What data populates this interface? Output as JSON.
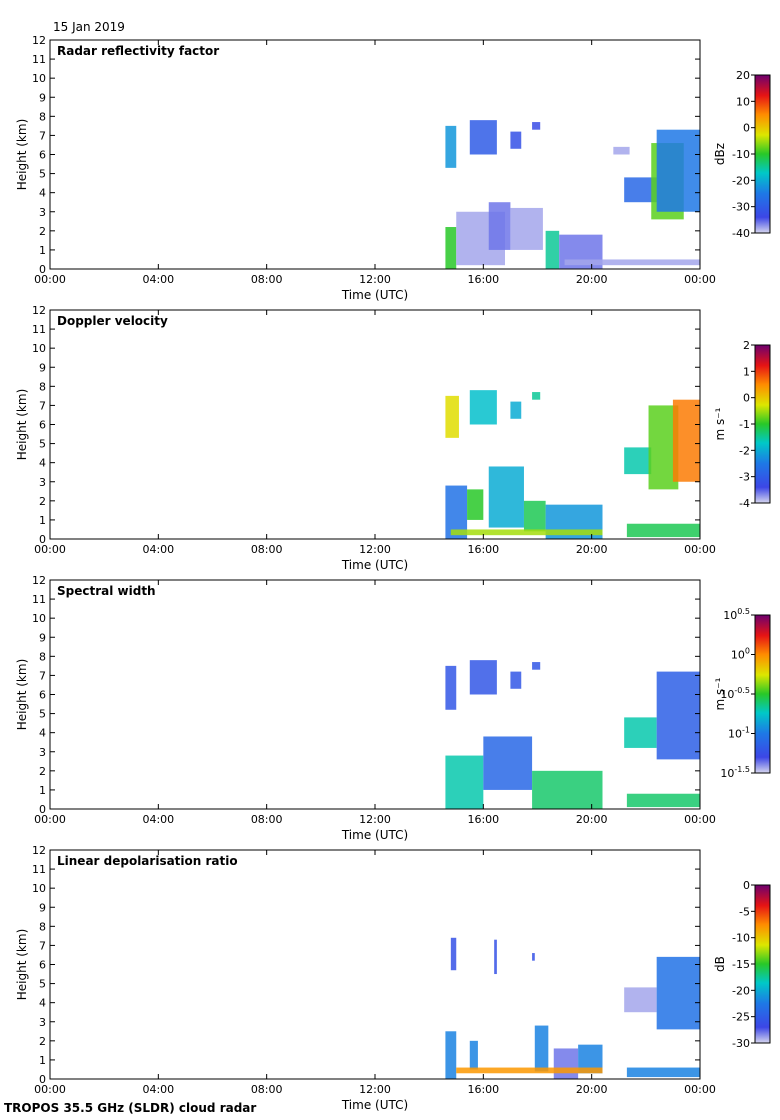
{
  "header": {
    "date": "15 Jan 2019"
  },
  "footer": {
    "instrument": "TROPOS 35.5 GHz (SLDR) cloud radar"
  },
  "chart_data": [
    {
      "type": "heatmap",
      "title": "Radar reflectivity factor",
      "xlabel": "Time (UTC)",
      "ylabel": "Height (km)",
      "xticks": [
        "00:00",
        "04:00",
        "08:00",
        "12:00",
        "16:00",
        "20:00",
        "00:00"
      ],
      "yticks": [
        "0",
        "1",
        "2",
        "3",
        "4",
        "5",
        "6",
        "7",
        "8",
        "9",
        "10",
        "11",
        "12"
      ],
      "ylim": [
        0,
        12
      ],
      "xlim_hours": [
        0,
        24
      ],
      "colorbar": {
        "unit": "dBz",
        "labels": [
          "20",
          "10",
          "0",
          "-10",
          "-20",
          "-30",
          "-40"
        ],
        "range": [
          -40,
          20
        ]
      },
      "echoes": [
        {
          "t0": 14.6,
          "t1": 15.0,
          "h0": 5.3,
          "h1": 7.5,
          "v": -22
        },
        {
          "t0": 15.5,
          "t1": 16.5,
          "h0": 6.0,
          "h1": 7.8,
          "v": -30
        },
        {
          "t0": 17.0,
          "t1": 17.4,
          "h0": 6.3,
          "h1": 7.2,
          "v": -32
        },
        {
          "t0": 17.8,
          "t1": 18.1,
          "h0": 7.3,
          "h1": 7.7,
          "v": -33
        },
        {
          "t0": 14.6,
          "t1": 15.0,
          "h0": 0.0,
          "h1": 2.2,
          "v": -10
        },
        {
          "t0": 15.0,
          "t1": 16.8,
          "h0": 0.2,
          "h1": 3.0,
          "v": -38
        },
        {
          "t0": 16.2,
          "t1": 17.0,
          "h0": 1.0,
          "h1": 3.5,
          "v": -36
        },
        {
          "t0": 17.0,
          "t1": 18.2,
          "h0": 1.0,
          "h1": 3.2,
          "v": -38
        },
        {
          "t0": 18.3,
          "t1": 18.8,
          "h0": 0.0,
          "h1": 2.0,
          "v": -15
        },
        {
          "t0": 18.8,
          "t1": 20.4,
          "h0": 0.0,
          "h1": 1.8,
          "v": -36
        },
        {
          "t0": 19.0,
          "t1": 24.0,
          "h0": 0.2,
          "h1": 0.5,
          "v": -38
        },
        {
          "t0": 21.2,
          "t1": 22.4,
          "h0": 3.5,
          "h1": 4.8,
          "v": -28
        },
        {
          "t0": 22.2,
          "t1": 23.4,
          "h0": 2.6,
          "h1": 6.6,
          "v": -8
        },
        {
          "t0": 22.4,
          "t1": 24.0,
          "h0": 3.0,
          "h1": 7.3,
          "v": -25
        },
        {
          "t0": 20.8,
          "t1": 21.4,
          "h0": 6.0,
          "h1": 6.4,
          "v": -38
        }
      ]
    },
    {
      "type": "heatmap",
      "title": "Doppler velocity",
      "xlabel": "Time (UTC)",
      "ylabel": "Height (km)",
      "xticks": [
        "00:00",
        "04:00",
        "08:00",
        "12:00",
        "16:00",
        "20:00",
        "00:00"
      ],
      "yticks": [
        "0",
        "1",
        "2",
        "3",
        "4",
        "5",
        "6",
        "7",
        "8",
        "9",
        "10",
        "11",
        "12"
      ],
      "ylim": [
        0,
        12
      ],
      "xlim_hours": [
        0,
        24
      ],
      "colorbar": {
        "unit": "m s⁻¹",
        "labels": [
          "2",
          "1",
          "0",
          "-1",
          "-2",
          "-3",
          "-4"
        ],
        "range": [
          -4,
          2
        ]
      },
      "echoes": [
        {
          "t0": 14.6,
          "t1": 15.1,
          "h0": 5.3,
          "h1": 7.5,
          "v": -0.2
        },
        {
          "t0": 15.5,
          "t1": 16.5,
          "h0": 6.0,
          "h1": 7.8,
          "v": -1.8
        },
        {
          "t0": 17.0,
          "t1": 17.4,
          "h0": 6.3,
          "h1": 7.2,
          "v": -2.0
        },
        {
          "t0": 17.8,
          "t1": 18.1,
          "h0": 7.3,
          "h1": 7.7,
          "v": -1.5
        },
        {
          "t0": 14.6,
          "t1": 15.4,
          "h0": 0.0,
          "h1": 2.8,
          "v": -2.6
        },
        {
          "t0": 15.4,
          "t1": 16.0,
          "h0": 1.0,
          "h1": 2.6,
          "v": -1.0
        },
        {
          "t0": 16.2,
          "t1": 17.5,
          "h0": 0.6,
          "h1": 3.8,
          "v": -2.0
        },
        {
          "t0": 17.5,
          "t1": 18.3,
          "h0": 0.4,
          "h1": 2.0,
          "v": -1.2
        },
        {
          "t0": 18.3,
          "t1": 20.4,
          "h0": 0.0,
          "h1": 1.8,
          "v": -2.2
        },
        {
          "t0": 14.8,
          "t1": 20.4,
          "h0": 0.2,
          "h1": 0.5,
          "v": -0.5
        },
        {
          "t0": 21.2,
          "t1": 22.2,
          "h0": 3.4,
          "h1": 4.8,
          "v": -1.6
        },
        {
          "t0": 22.1,
          "t1": 23.2,
          "h0": 2.6,
          "h1": 7.0,
          "v": -0.8
        },
        {
          "t0": 23.0,
          "t1": 24.0,
          "h0": 3.0,
          "h1": 7.3,
          "v": 0.6
        },
        {
          "t0": 21.3,
          "t1": 24.0,
          "h0": 0.1,
          "h1": 0.8,
          "v": -1.2
        }
      ]
    },
    {
      "type": "heatmap",
      "title": "Spectral width",
      "xlabel": "Time (UTC)",
      "ylabel": "Height (km)",
      "xticks": [
        "00:00",
        "04:00",
        "08:00",
        "12:00",
        "16:00",
        "20:00",
        "00:00"
      ],
      "yticks": [
        "0",
        "1",
        "2",
        "3",
        "4",
        "5",
        "6",
        "7",
        "8",
        "9",
        "10",
        "11",
        "12"
      ],
      "ylim": [
        0,
        12
      ],
      "xlim_hours": [
        0,
        24
      ],
      "colorbar": {
        "unit": "m s⁻¹",
        "labels": [
          "10^0.5",
          "10^0",
          "10^-0.5",
          "10^-1",
          "10^-1.5"
        ],
        "range_log10": [
          -1.5,
          0.5
        ]
      },
      "echoes": [
        {
          "t0": 14.6,
          "t1": 15.0,
          "h0": 5.2,
          "h1": 7.5,
          "v": -1.2
        },
        {
          "t0": 15.5,
          "t1": 16.5,
          "h0": 6.0,
          "h1": 7.8,
          "v": -1.2
        },
        {
          "t0": 17.0,
          "t1": 17.4,
          "h0": 6.3,
          "h1": 7.2,
          "v": -1.2
        },
        {
          "t0": 17.8,
          "t1": 18.1,
          "h0": 7.3,
          "h1": 7.7,
          "v": -1.2
        },
        {
          "t0": 14.6,
          "t1": 16.0,
          "h0": 0.0,
          "h1": 2.8,
          "v": -0.7
        },
        {
          "t0": 16.0,
          "t1": 17.8,
          "h0": 1.0,
          "h1": 3.8,
          "v": -1.1
        },
        {
          "t0": 17.8,
          "t1": 20.4,
          "h0": 0.0,
          "h1": 2.0,
          "v": -0.6
        },
        {
          "t0": 21.2,
          "t1": 22.4,
          "h0": 3.2,
          "h1": 4.8,
          "v": -0.7
        },
        {
          "t0": 22.4,
          "t1": 24.0,
          "h0": 2.6,
          "h1": 7.2,
          "v": -1.15
        },
        {
          "t0": 21.3,
          "t1": 24.0,
          "h0": 0.1,
          "h1": 0.8,
          "v": -0.6
        }
      ]
    },
    {
      "type": "heatmap",
      "title": "Linear depolarisation ratio",
      "xlabel": "Time (UTC)",
      "ylabel": "Height (km)",
      "xticks": [
        "00:00",
        "04:00",
        "08:00",
        "12:00",
        "16:00",
        "20:00",
        "00:00"
      ],
      "yticks": [
        "0",
        "1",
        "2",
        "3",
        "4",
        "5",
        "6",
        "7",
        "8",
        "9",
        "10",
        "11",
        "12"
      ],
      "ylim": [
        0,
        12
      ],
      "xlim_hours": [
        0,
        24
      ],
      "colorbar": {
        "unit": "dB",
        "labels": [
          "0",
          "-5",
          "-10",
          "-15",
          "-20",
          "-25",
          "-30"
        ],
        "range": [
          -30,
          0
        ]
      },
      "echoes": [
        {
          "t0": 14.8,
          "t1": 15.0,
          "h0": 5.7,
          "h1": 7.4,
          "v": -26
        },
        {
          "t0": 16.4,
          "t1": 16.5,
          "h0": 5.5,
          "h1": 7.3,
          "v": -26
        },
        {
          "t0": 17.8,
          "t1": 17.9,
          "h0": 6.2,
          "h1": 6.6,
          "v": -26
        },
        {
          "t0": 14.6,
          "t1": 15.0,
          "h0": 0.0,
          "h1": 2.5,
          "v": -22
        },
        {
          "t0": 15.5,
          "t1": 15.8,
          "h0": 0.5,
          "h1": 2.0,
          "v": -22
        },
        {
          "t0": 17.9,
          "t1": 18.4,
          "h0": 0.4,
          "h1": 2.8,
          "v": -22
        },
        {
          "t0": 18.6,
          "t1": 19.5,
          "h0": 0.0,
          "h1": 1.6,
          "v": -28
        },
        {
          "t0": 19.5,
          "t1": 20.4,
          "h0": 0.3,
          "h1": 1.8,
          "v": -22
        },
        {
          "t0": 15.0,
          "t1": 20.4,
          "h0": 0.3,
          "h1": 0.6,
          "v": -8
        },
        {
          "t0": 21.2,
          "t1": 22.4,
          "h0": 3.5,
          "h1": 4.8,
          "v": -29
        },
        {
          "t0": 22.4,
          "t1": 24.0,
          "h0": 2.6,
          "h1": 6.4,
          "v": -23
        },
        {
          "t0": 21.3,
          "t1": 24.0,
          "h0": 0.1,
          "h1": 0.6,
          "v": -22
        }
      ]
    }
  ]
}
